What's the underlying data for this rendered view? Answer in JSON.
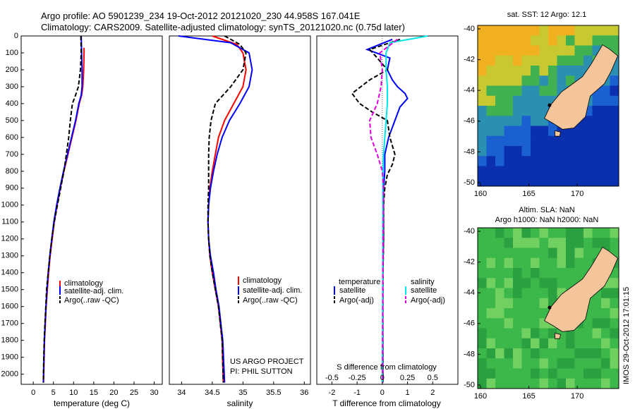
{
  "header": {
    "line1": "Argo profile: AO 5901239_234 19-Oct-2012 20121020_230 44.958S 167.041E",
    "line2": "Climatology: CARS2009. Satellite-adjusted climatology: synTS_20121020.nc (0.75d later)"
  },
  "colors": {
    "climatology": "#ff0000",
    "satellite": "#0000ff",
    "argo": "#000000",
    "sal_satellite": "#00e5e5",
    "sal_argo": "#e000e0",
    "land": "#f4c49a"
  },
  "chart_data": [
    {
      "type": "line",
      "id": "temperature",
      "xlabel": "temperature (deg C)",
      "ylabel": "",
      "xlim": [
        -3,
        32
      ],
      "ylim": [
        2060,
        0
      ],
      "xticks": [
        0,
        5,
        10,
        15,
        20,
        25,
        30
      ],
      "yticks": [
        0,
        100,
        200,
        300,
        400,
        500,
        600,
        700,
        800,
        900,
        1000,
        1100,
        1200,
        1300,
        1400,
        1500,
        1600,
        1700,
        1800,
        1900,
        2000
      ],
      "legend": [
        "climatology",
        "satellite-adj. clim.",
        "Argo(..raw -QC)"
      ],
      "series": [
        {
          "name": "climatology",
          "style": "solid",
          "color": "#ff0000",
          "x": [
            12.6,
            12.6,
            12.5,
            12.3,
            12.0,
            11.4,
            10.6,
            9.6,
            8.6,
            7.6,
            6.7,
            5.9,
            5.2,
            4.7,
            4.2,
            3.8,
            3.5,
            3.2,
            3.0,
            2.8,
            2.7,
            2.55
          ],
          "y": [
            70,
            100,
            200,
            300,
            350,
            400,
            500,
            600,
            700,
            800,
            900,
            1000,
            1100,
            1200,
            1300,
            1400,
            1500,
            1600,
            1700,
            1800,
            1900,
            2050
          ]
        },
        {
          "name": "satellite-adj. clim.",
          "style": "solid",
          "color": "#0000ff",
          "x": [
            11.9,
            12.0,
            12.1,
            12.1,
            11.9,
            11.3,
            10.5,
            9.5,
            8.5,
            7.5,
            6.6,
            5.8,
            5.1,
            4.6,
            4.1,
            3.7,
            3.4,
            3.15,
            2.95,
            2.75,
            2.65,
            2.5
          ],
          "y": [
            0,
            100,
            200,
            300,
            350,
            400,
            500,
            600,
            700,
            800,
            900,
            1000,
            1100,
            1200,
            1300,
            1400,
            1500,
            1600,
            1700,
            1800,
            1900,
            2050
          ]
        },
        {
          "name": "Argo(..raw -QC)",
          "style": "dashed",
          "color": "#000000",
          "x": [
            11.8,
            11.9,
            11.7,
            11.2,
            10.5,
            9.7,
            9.2,
            8.8,
            8.2,
            7.6,
            6.8,
            6.0,
            5.2,
            4.6,
            4.1,
            3.7,
            3.3,
            3.1,
            2.9,
            2.7,
            2.6,
            2.5
          ],
          "y": [
            0,
            100,
            200,
            300,
            350,
            400,
            500,
            600,
            700,
            800,
            900,
            1000,
            1100,
            1200,
            1300,
            1400,
            1500,
            1600,
            1700,
            1800,
            1900,
            2050
          ]
        }
      ],
      "annotation": ""
    },
    {
      "type": "line",
      "id": "salinity",
      "xlabel": "salinity",
      "xlim": [
        33.8,
        36.1
      ],
      "ylim": [
        2060,
        0
      ],
      "xticks": [
        34,
        34.5,
        35,
        35.5,
        36
      ],
      "legend": [
        "climatology",
        "satellite-adj. clim.",
        "Argo(..raw -QC)"
      ],
      "series": [
        {
          "name": "climatology",
          "style": "solid",
          "color": "#ff0000",
          "x": [
            34.5,
            34.9,
            35.0,
            35.05,
            35.0,
            34.85,
            34.7,
            34.6,
            34.55,
            34.5,
            34.46,
            34.44,
            34.43,
            34.44,
            34.46,
            34.5,
            34.55,
            34.6,
            34.63,
            34.66,
            34.68
          ],
          "y": [
            0,
            50,
            100,
            200,
            300,
            400,
            500,
            600,
            700,
            800,
            900,
            1000,
            1100,
            1200,
            1300,
            1400,
            1500,
            1600,
            1700,
            1800,
            2050
          ]
        },
        {
          "name": "satellite-adj. clim.",
          "style": "solid",
          "color": "#0000ff",
          "x": [
            33.95,
            34.8,
            35.1,
            35.15,
            35.1,
            34.95,
            34.78,
            34.66,
            34.58,
            34.52,
            34.47,
            34.44,
            34.43,
            34.44,
            34.47,
            34.52,
            34.56,
            34.61,
            34.64,
            34.67,
            34.7
          ],
          "y": [
            0,
            40,
            100,
            200,
            300,
            400,
            500,
            600,
            700,
            800,
            900,
            1000,
            1100,
            1200,
            1300,
            1400,
            1500,
            1600,
            1700,
            1800,
            2050
          ]
        },
        {
          "name": "Argo(..raw -QC)",
          "style": "dashed",
          "color": "#000000",
          "x": [
            34.7,
            34.95,
            35.05,
            35.0,
            34.8,
            34.55,
            34.48,
            34.45,
            34.44,
            34.44,
            34.44,
            34.43,
            34.43,
            34.44,
            34.46,
            34.5,
            34.55,
            34.6,
            34.63,
            34.66,
            34.68
          ],
          "y": [
            0,
            50,
            100,
            200,
            300,
            400,
            500,
            600,
            700,
            800,
            900,
            1000,
            1100,
            1200,
            1300,
            1400,
            1500,
            1600,
            1700,
            1800,
            2050
          ]
        }
      ],
      "annotation_lines": [
        "US ARGO PROJECT",
        "PI: PHIL SUTTON"
      ]
    },
    {
      "type": "line",
      "id": "differences",
      "xlabel": "T difference from climatology",
      "xlabel_top": "S difference from climatology",
      "xlim": [
        -2.6,
        3.0
      ],
      "ylim": [
        2060,
        0
      ],
      "xticks": [
        -2,
        -1,
        0,
        1,
        2
      ],
      "sticks": [
        "-0.5",
        "-0.25",
        "0",
        "0.25",
        "0.5"
      ],
      "legend_titles": [
        "temperature",
        "salinity"
      ],
      "legend": [
        "satellite",
        "Argo(-adj)",
        "satellite",
        "Argo(-adj)"
      ],
      "series": [
        {
          "name": "T satellite",
          "style": "solid",
          "color": "#0000ff",
          "x": [
            0.4,
            -0.6,
            0.3,
            0.2,
            0.4,
            0.6,
            0.9,
            1.0,
            0.7,
            0.5,
            0.25,
            0.1,
            0.1,
            0.05,
            0.05,
            0.05,
            0.02,
            0.02,
            0.02,
            0.02
          ],
          "y": [
            20,
            80,
            130,
            200,
            260,
            300,
            340,
            370,
            420,
            500,
            600,
            700,
            800,
            900,
            1000,
            1200,
            1400,
            1600,
            1800,
            2050
          ]
        },
        {
          "name": "T Argo(-adj)",
          "style": "dashed",
          "color": "#000000",
          "x": [
            0.7,
            -0.5,
            -0.2,
            0.2,
            -0.5,
            -1.2,
            -0.9,
            -0.4,
            0.2,
            0.3,
            0.5,
            0.4,
            0.2,
            0.1,
            0.05,
            0.05,
            0.03,
            0.02,
            0.02,
            0.02
          ],
          "y": [
            20,
            80,
            130,
            200,
            260,
            340,
            400,
            450,
            500,
            600,
            700,
            760,
            820,
            900,
            1000,
            1200,
            1400,
            1600,
            1800,
            2050
          ]
        },
        {
          "name": "S satellite",
          "style": "solid",
          "color": "#00e5e5",
          "x": [
            1.8,
            0.3,
            0.15,
            0.15,
            0.2,
            0.2,
            0.15,
            0.1,
            0.05,
            0.03,
            0.02,
            0.02,
            0.02,
            0.02,
            0.01,
            0.01,
            0.0,
            0.0
          ],
          "y": [
            0,
            40,
            100,
            200,
            300,
            400,
            500,
            600,
            700,
            800,
            900,
            1000,
            1200,
            1400,
            1600,
            1800,
            1900,
            2050
          ]
        },
        {
          "name": "S Argo(-adj)",
          "style": "dashed",
          "color": "#e000e0",
          "x": [
            0.6,
            -0.1,
            0.0,
            -0.05,
            -0.2,
            -0.5,
            -0.45,
            -0.2,
            0.0,
            0.05,
            0.05,
            0.03,
            0.02,
            0.02,
            0.01,
            0.01
          ],
          "y": [
            20,
            100,
            200,
            300,
            400,
            500,
            600,
            700,
            800,
            900,
            1000,
            1200,
            1400,
            1600,
            1800,
            2050
          ]
        }
      ]
    }
  ],
  "maps": [
    {
      "title_lines": [
        "sat. SST: 12 Argo: 12.1"
      ],
      "xticks": [
        "160",
        "165",
        "170"
      ],
      "yticks": [
        "-40",
        "-42",
        "-44",
        "-46",
        "-48",
        "-50"
      ],
      "palette": "sst"
    },
    {
      "title_lines": [
        "Altim. SLA: NaN",
        "Argo h1000: NaN h2000: NaN"
      ],
      "xticks": [
        "160",
        "165",
        "170"
      ],
      "yticks": [
        "-40",
        "-42",
        "-44",
        "-46",
        "-48",
        "-50"
      ],
      "palette": "sla"
    }
  ],
  "footer": {
    "stamp": "IMOS 29-Oct-2012 17:01:15"
  }
}
